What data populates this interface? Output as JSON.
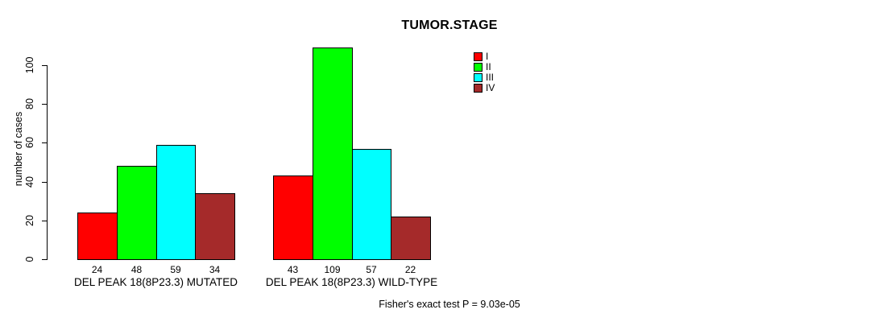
{
  "chart_data": {
    "type": "bar",
    "title": "TUMOR.STAGE",
    "ylabel": "number of cases",
    "xlabel": "",
    "yticks": [
      0,
      20,
      40,
      60,
      80,
      100
    ],
    "ylim": [
      0,
      109
    ],
    "grid": false,
    "legend_position": "top-right",
    "categories": [
      "DEL PEAK 18(8P23.3) MUTATED",
      "DEL PEAK 18(8P23.3) WILD-TYPE"
    ],
    "series": [
      {
        "name": "I",
        "color": "#FF0000",
        "values": [
          24,
          43
        ]
      },
      {
        "name": "II",
        "color": "#00FF00",
        "values": [
          48,
          109
        ]
      },
      {
        "name": "III",
        "color": "#00FFFF",
        "values": [
          59,
          57
        ]
      },
      {
        "name": "IV",
        "color": "#A52A2A",
        "values": [
          34,
          22
        ]
      }
    ],
    "bar_value_labels": [
      [
        24,
        48,
        59,
        34
      ],
      [
        43,
        109,
        57,
        22
      ]
    ],
    "annotation": "Fisher's exact test P = 9.03e-05",
    "axis_color": "#000000",
    "bar_border_color": "#000000"
  }
}
